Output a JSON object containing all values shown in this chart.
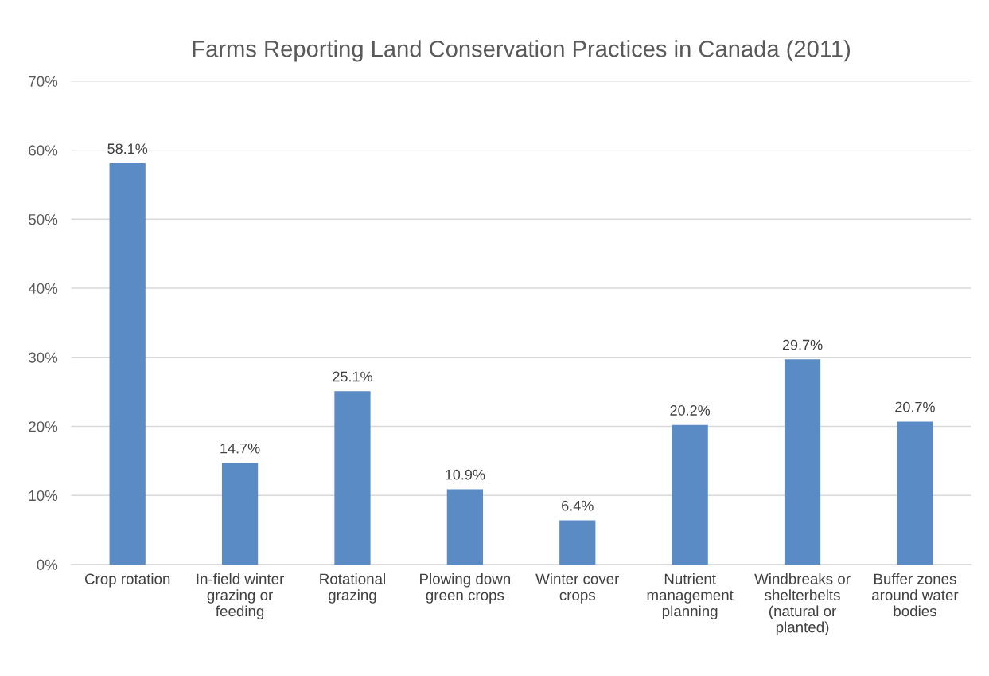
{
  "chart_data": {
    "type": "bar",
    "title": "Farms Reporting Land Conservation Practices in Canada (2011)",
    "categories": [
      "Crop rotation",
      "In-field winter\ngrazing or\nfeeding",
      "Rotational\ngrazing",
      "Plowing down\ngreen crops",
      "Winter cover\ncrops",
      "Nutrient\nmanagement\nplanning",
      "Windbreaks or\nshelterbelts\n(natural or\nplanted)",
      "Buffer zones\naround water\nbodies"
    ],
    "values": [
      58.1,
      14.7,
      25.1,
      10.9,
      6.4,
      20.2,
      29.7,
      20.7
    ],
    "value_labels": [
      "58.1%",
      "14.7%",
      "25.1%",
      "10.9%",
      "6.4%",
      "20.2%",
      "29.7%",
      "20.7%"
    ],
    "color": "#5b8bc5",
    "ylim": [
      0,
      70
    ],
    "yticks": [
      {
        "value": 0,
        "label": "0%"
      },
      {
        "value": 10,
        "label": "10%"
      },
      {
        "value": 20,
        "label": "20%"
      },
      {
        "value": 30,
        "label": "30%"
      },
      {
        "value": 40,
        "label": "40%"
      },
      {
        "value": 50,
        "label": "50%"
      },
      {
        "value": 60,
        "label": "60%"
      },
      {
        "value": 70,
        "label": "70%"
      }
    ],
    "grid": "y"
  }
}
